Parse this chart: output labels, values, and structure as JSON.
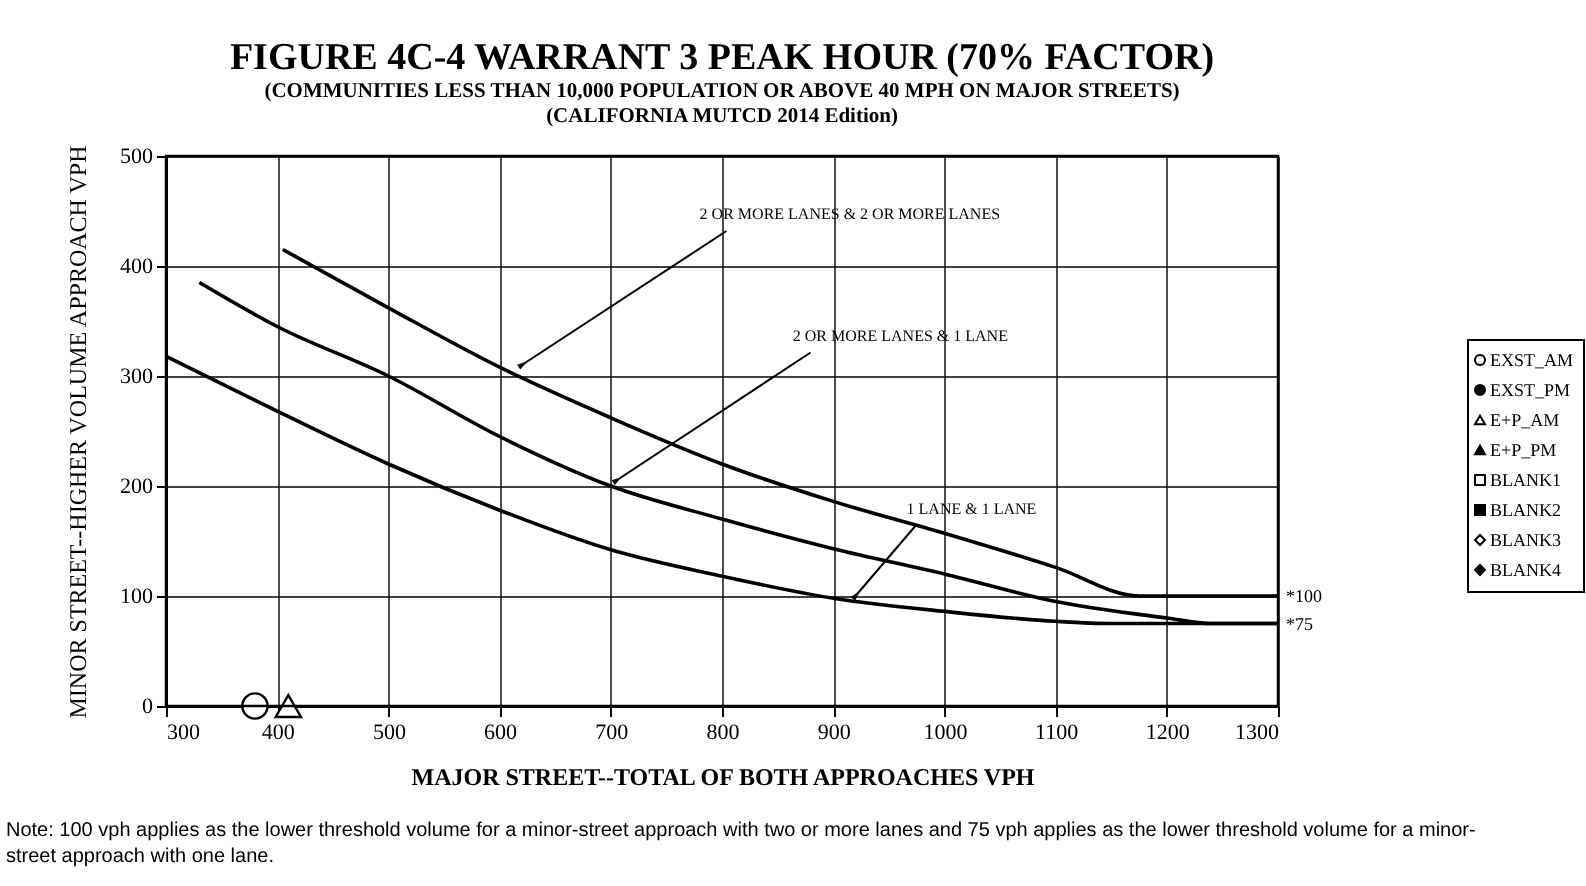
{
  "chart_data": {
    "type": "line",
    "title": "FIGURE 4C-4 WARRANT 3 PEAK HOUR (70% FACTOR)",
    "subtitle": [
      "(COMMUNITIES LESS THAN 10,000 POPULATION OR ABOVE 40 MPH ON MAJOR STREETS)",
      "(CALIFORNIA MUTCD 2014 Edition)"
    ],
    "xlabel": "MAJOR STREET--TOTAL OF BOTH APPROACHES VPH",
    "ylabel": "MINOR STREET--HIGHER VOLUME APPROACH VPH",
    "xlim": [
      300,
      1300
    ],
    "xticks": [
      300,
      400,
      500,
      600,
      700,
      800,
      900,
      1000,
      1100,
      1200,
      1300
    ],
    "ylim": [
      0,
      500
    ],
    "yticks": [
      0,
      100,
      200,
      300,
      400,
      500
    ],
    "grid": true,
    "legend": "right",
    "line_style": "solid",
    "series": [
      {
        "color": "#000000",
        "marker": "none",
        "x": [
          405,
          500,
          600,
          700,
          800,
          900,
          1000,
          1100,
          1175,
          1300
        ],
        "values": [
          415,
          362,
          308,
          262,
          220,
          186,
          157,
          126,
          100,
          100
        ]
      },
      {
        "color": "#000000",
        "marker": "none",
        "x": [
          330,
          400,
          500,
          600,
          700,
          800,
          900,
          1000,
          1100,
          1200,
          1240,
          1300
        ],
        "values": [
          385,
          345,
          300,
          245,
          200,
          170,
          143,
          120,
          95,
          80,
          75,
          75
        ]
      },
      {
        "color": "#000000",
        "marker": "none",
        "x": [
          300,
          400,
          500,
          600,
          700,
          800,
          900,
          1000,
          1100,
          1150,
          1300
        ],
        "values": [
          318,
          268,
          220,
          178,
          142,
          118,
          98,
          86,
          77,
          75,
          75
        ]
      },
      {
        "type": "scatter",
        "name": "EXST_AM",
        "color": "#ffffff",
        "marker": "circle",
        "x": [
          380
        ],
        "values": [
          0
        ]
      },
      {
        "type": "scatter",
        "name": "EXST_PM",
        "color": "#000000",
        "marker": "circle"
      },
      {
        "type": "scatter",
        "name": "E+P_AM",
        "color": "#ffffff",
        "marker": "triangle",
        "x": [
          410
        ],
        "values": [
          0
        ]
      },
      {
        "type": "scatter",
        "name": "E+P_PM",
        "color": "#000000",
        "marker": "triangle"
      },
      {
        "type": "scatter",
        "name": "BLANK1",
        "color": "#ffffff",
        "marker": "square"
      },
      {
        "type": "scatter",
        "name": "BLANK2",
        "color": "#000000",
        "marker": "square"
      },
      {
        "type": "scatter",
        "name": "BLANK3",
        "color": "#ffffff",
        "marker": "diamond"
      },
      {
        "type": "scatter",
        "name": "BLANK4",
        "color": "#000000",
        "marker": "diamond"
      }
    ],
    "annotations": [
      {
        "text": "2 OR MORE LANES & 2 OR MORE LANES",
        "x": 620,
        "y": 310
      },
      {
        "text": "2 OR MORE LANES & 1 LANE",
        "x": 705,
        "y": 205
      },
      {
        "text": "1 LANE & 1 LANE",
        "x": 920,
        "y": 100
      },
      {
        "text": "*100",
        "x": 1300,
        "y": 100
      },
      {
        "text": "*75",
        "x": 1300,
        "y": 75
      },
      "Note: 100 vph applies as the lower threshold volume for a minor-street approach with two or more lanes and 75 vph applies as the lower threshold volume for a minor-street approach with one lane."
    ]
  }
}
